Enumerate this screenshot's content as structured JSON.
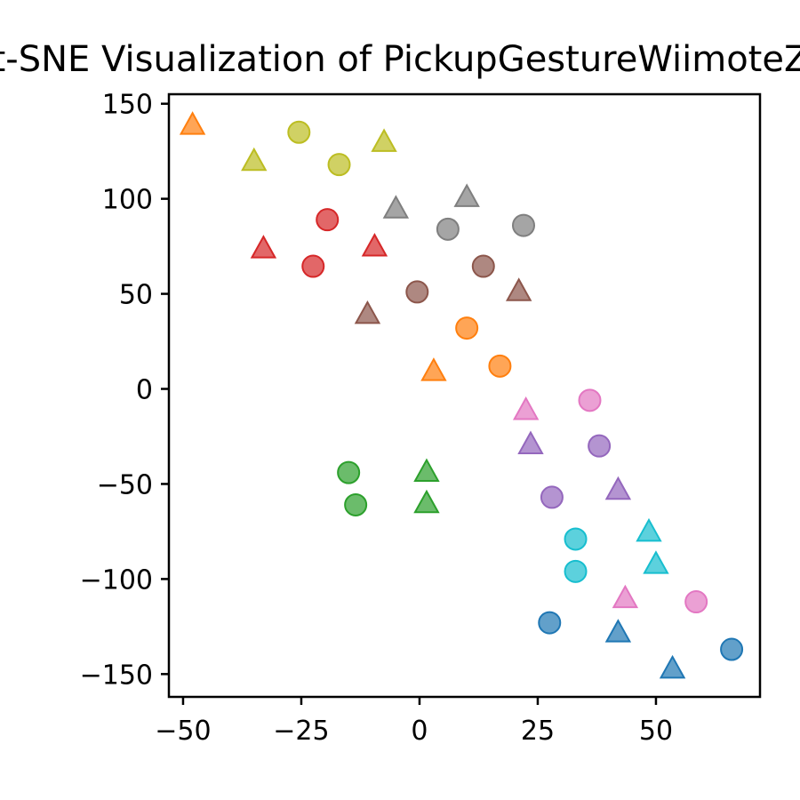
{
  "chart_data": {
    "type": "scatter",
    "title": "t-SNE Visualization of PickupGestureWiimoteZ",
    "xlabel": "",
    "ylabel": "",
    "xlim": [
      -53,
      72
    ],
    "ylim": [
      -162,
      155
    ],
    "x_ticks": [
      -50,
      -25,
      0,
      25,
      50
    ],
    "y_ticks": [
      -150,
      -100,
      -50,
      0,
      50,
      100,
      150
    ],
    "x_tick_labels": [
      "−50",
      "−25",
      "0",
      "25",
      "50"
    ],
    "y_tick_labels": [
      "−150",
      "−100",
      "−50",
      "0",
      "50",
      "100",
      "150"
    ],
    "grid": false,
    "legend": "none",
    "colors": {
      "blue": "#1f77b4",
      "orange": "#ff7f0e",
      "green": "#2ca02c",
      "red": "#d62728",
      "purple": "#9467bd",
      "brown": "#8c564b",
      "pink": "#e377c2",
      "gray": "#7f7f7f",
      "olive": "#bcbd22",
      "cyan": "#17becf"
    },
    "points": [
      {
        "x": -48.0,
        "y": 139.0,
        "marker": "triangle",
        "color": "orange"
      },
      {
        "x": -25.5,
        "y": 135.0,
        "marker": "circle",
        "color": "olive"
      },
      {
        "x": -35.0,
        "y": 120.0,
        "marker": "triangle",
        "color": "olive"
      },
      {
        "x": -17.0,
        "y": 118.0,
        "marker": "circle",
        "color": "olive"
      },
      {
        "x": -7.5,
        "y": 130.0,
        "marker": "triangle",
        "color": "olive"
      },
      {
        "x": 10.0,
        "y": 101.0,
        "marker": "triangle",
        "color": "gray"
      },
      {
        "x": -5.0,
        "y": 95.0,
        "marker": "triangle",
        "color": "gray"
      },
      {
        "x": 6.0,
        "y": 84.0,
        "marker": "circle",
        "color": "gray"
      },
      {
        "x": 22.0,
        "y": 86.0,
        "marker": "circle",
        "color": "gray"
      },
      {
        "x": -19.5,
        "y": 89.0,
        "marker": "circle",
        "color": "red"
      },
      {
        "x": -33.0,
        "y": 74.0,
        "marker": "triangle",
        "color": "red"
      },
      {
        "x": -9.5,
        "y": 75.0,
        "marker": "triangle",
        "color": "red"
      },
      {
        "x": -22.5,
        "y": 64.5,
        "marker": "circle",
        "color": "red"
      },
      {
        "x": 13.5,
        "y": 64.5,
        "marker": "circle",
        "color": "brown"
      },
      {
        "x": -0.5,
        "y": 51.0,
        "marker": "circle",
        "color": "brown"
      },
      {
        "x": 21.0,
        "y": 51.5,
        "marker": "triangle",
        "color": "brown"
      },
      {
        "x": -11.0,
        "y": 39.5,
        "marker": "triangle",
        "color": "brown"
      },
      {
        "x": 10.0,
        "y": 32.0,
        "marker": "circle",
        "color": "orange"
      },
      {
        "x": 17.0,
        "y": 12.0,
        "marker": "circle",
        "color": "orange"
      },
      {
        "x": 3.0,
        "y": 9.5,
        "marker": "triangle",
        "color": "orange"
      },
      {
        "x": 36.0,
        "y": -6.0,
        "marker": "circle",
        "color": "pink"
      },
      {
        "x": 22.5,
        "y": -11.0,
        "marker": "triangle",
        "color": "pink"
      },
      {
        "x": 23.5,
        "y": -29.0,
        "marker": "triangle",
        "color": "purple"
      },
      {
        "x": 38.0,
        "y": -30.0,
        "marker": "circle",
        "color": "purple"
      },
      {
        "x": 28.0,
        "y": -57.0,
        "marker": "circle",
        "color": "purple"
      },
      {
        "x": 42.0,
        "y": -53.0,
        "marker": "triangle",
        "color": "purple"
      },
      {
        "x": -15.0,
        "y": -44.0,
        "marker": "circle",
        "color": "green"
      },
      {
        "x": 1.5,
        "y": -43.5,
        "marker": "triangle",
        "color": "green"
      },
      {
        "x": -13.5,
        "y": -61.0,
        "marker": "circle",
        "color": "green"
      },
      {
        "x": 1.5,
        "y": -60.0,
        "marker": "triangle",
        "color": "green"
      },
      {
        "x": 48.5,
        "y": -75.0,
        "marker": "triangle",
        "color": "cyan"
      },
      {
        "x": 33.0,
        "y": -79.0,
        "marker": "circle",
        "color": "cyan"
      },
      {
        "x": 50.0,
        "y": -92.0,
        "marker": "triangle",
        "color": "cyan"
      },
      {
        "x": 33.0,
        "y": -96.0,
        "marker": "circle",
        "color": "cyan"
      },
      {
        "x": 58.5,
        "y": -112.0,
        "marker": "circle",
        "color": "pink"
      },
      {
        "x": 43.5,
        "y": -110.0,
        "marker": "triangle",
        "color": "pink"
      },
      {
        "x": 27.5,
        "y": -123.0,
        "marker": "circle",
        "color": "blue"
      },
      {
        "x": 42.0,
        "y": -128.0,
        "marker": "triangle",
        "color": "blue"
      },
      {
        "x": 66.0,
        "y": -137.0,
        "marker": "circle",
        "color": "blue"
      },
      {
        "x": 53.5,
        "y": -147.0,
        "marker": "triangle",
        "color": "blue"
      }
    ]
  }
}
